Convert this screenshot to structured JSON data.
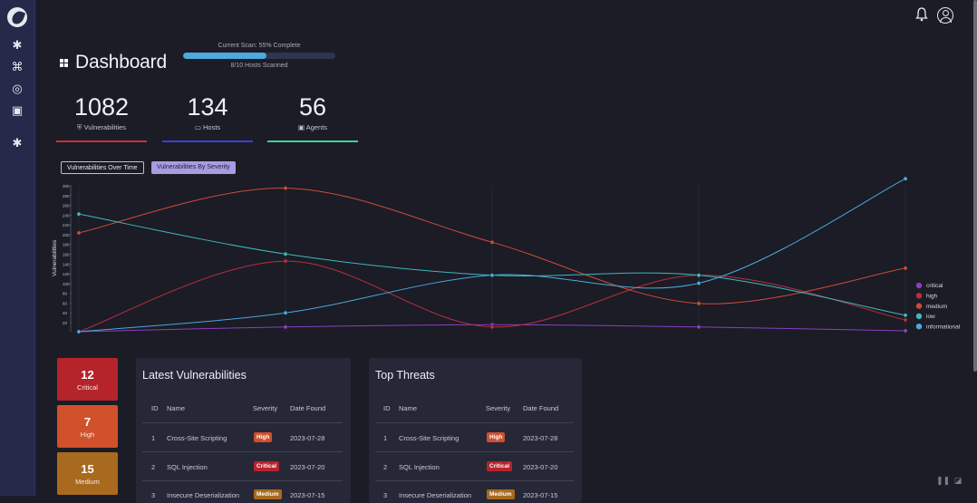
{
  "page": {
    "title": "Dashboard"
  },
  "scan": {
    "status": "Current Scan: 55% Complete",
    "progress": 0.55,
    "hosts": "8/10 Hosts Scanned"
  },
  "stats": [
    {
      "value": "1082",
      "label": "Vulnerabilities",
      "color": "#c9303a"
    },
    {
      "value": "134",
      "label": "Hosts",
      "color": "#3b3fd8"
    },
    {
      "value": "56",
      "label": "Agents",
      "color": "#3fd19a"
    }
  ],
  "tabs": [
    "Vulnerabilities Over Time",
    "Vulnerabilities By Severity"
  ],
  "chart_data": {
    "type": "line",
    "ylabel": "Vulnerabilities",
    "ytick_labels": [
      "20",
      "40",
      "60",
      "80",
      "100",
      "120",
      "140",
      "160",
      "180",
      "200",
      "220",
      "240",
      "260",
      "280",
      "300"
    ],
    "yrange": [
      0,
      310
    ],
    "x": [
      0,
      1,
      2,
      3,
      4
    ],
    "series": [
      {
        "name": "critical",
        "color": "#8b3fc0",
        "values": [
          0,
          10,
          15,
          10,
          2
        ]
      },
      {
        "name": "high",
        "color": "#b83040",
        "values": [
          0,
          150,
          10,
          120,
          25
        ]
      },
      {
        "name": "medium",
        "color": "#d04a3a",
        "values": [
          210,
          305,
          190,
          60,
          135
        ]
      },
      {
        "name": "low",
        "color": "#3fb8c0",
        "values": [
          250,
          165,
          120,
          120,
          35
        ]
      },
      {
        "name": "informational",
        "color": "#4aa8e0",
        "values": [
          0,
          40,
          120,
          103,
          325
        ]
      }
    ]
  },
  "severity_cards": [
    {
      "count": "12",
      "label": "Critical",
      "color": "#b5242b"
    },
    {
      "count": "7",
      "label": "High",
      "color": "#d0512a"
    },
    {
      "count": "15",
      "label": "Medium",
      "color": "#a86a1e"
    }
  ],
  "latest": {
    "title": "Latest Vulnerabilities",
    "headers": [
      "ID",
      "Name",
      "Severity",
      "Date Found"
    ],
    "rows": [
      {
        "id": "1",
        "name": "Cross-Site Scripting",
        "severity": "High",
        "sev_color": "#d0502a",
        "date": "2023-07-28"
      },
      {
        "id": "2",
        "name": "SQL Injection",
        "severity": "Critical",
        "sev_color": "#b7232b",
        "date": "2023-07-20"
      },
      {
        "id": "3",
        "name": "Insecure Deserialization",
        "severity": "Medium",
        "sev_color": "#a86a1e",
        "date": "2023-07-15"
      }
    ]
  },
  "threats": {
    "title": "Top Threats",
    "headers": [
      "ID",
      "Name",
      "Severity",
      "Date Found"
    ],
    "rows": [
      {
        "id": "1",
        "name": "Cross-Site Scripting",
        "severity": "High",
        "sev_color": "#d0502a",
        "date": "2023-07-28"
      },
      {
        "id": "2",
        "name": "SQL Injection",
        "severity": "Critical",
        "sev_color": "#b7232b",
        "date": "2023-07-20"
      },
      {
        "id": "3",
        "name": "Insecure Deserialization",
        "severity": "Medium",
        "sev_color": "#a86a1e",
        "date": "2023-07-15"
      }
    ]
  }
}
